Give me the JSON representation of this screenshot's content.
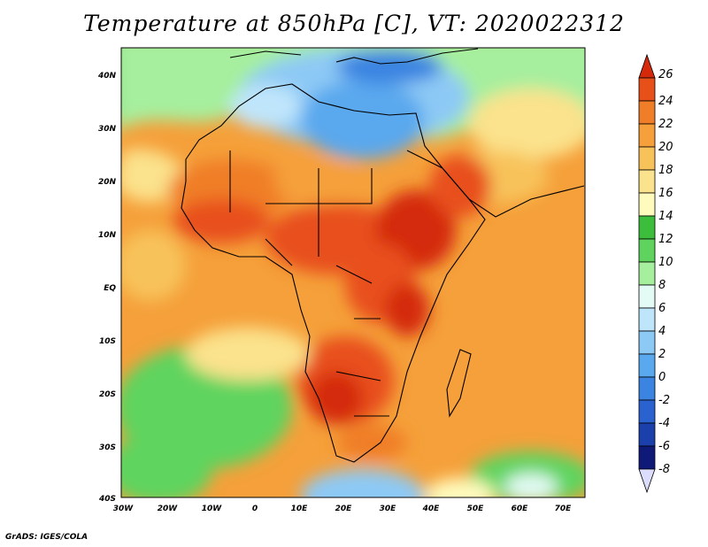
{
  "title": "Temperature at 850hPa [C], VT: 2020022312",
  "credit": "GrADS: IGES/COLA",
  "map": {
    "lat_ticks": [
      "40N",
      "30N",
      "20N",
      "10N",
      "EQ",
      "10S",
      "20S",
      "30S",
      "40S"
    ],
    "lon_ticks": [
      "30W",
      "20W",
      "10W",
      "0",
      "10E",
      "20E",
      "30E",
      "40E",
      "50E",
      "60E",
      "70E"
    ]
  },
  "colorbar": {
    "labels": [
      "26",
      "24",
      "22",
      "20",
      "18",
      "16",
      "14",
      "12",
      "10",
      "8",
      "6",
      "4",
      "2",
      "0",
      "-2",
      "-4",
      "-6",
      "-8"
    ],
    "colors": [
      "#d42a0b",
      "#e8501a",
      "#f07e28",
      "#f5a03a",
      "#f8c25a",
      "#fbe28c",
      "#fffbbd",
      "#3cbd3c",
      "#5ed45e",
      "#a6ef9e",
      "#e4fbf5",
      "#bfe5fb",
      "#8dc9f5",
      "#5aa8ee",
      "#3b84e1",
      "#2a62cf",
      "#1b3fab",
      "#0f1a78",
      "#dcdcfc"
    ]
  }
}
